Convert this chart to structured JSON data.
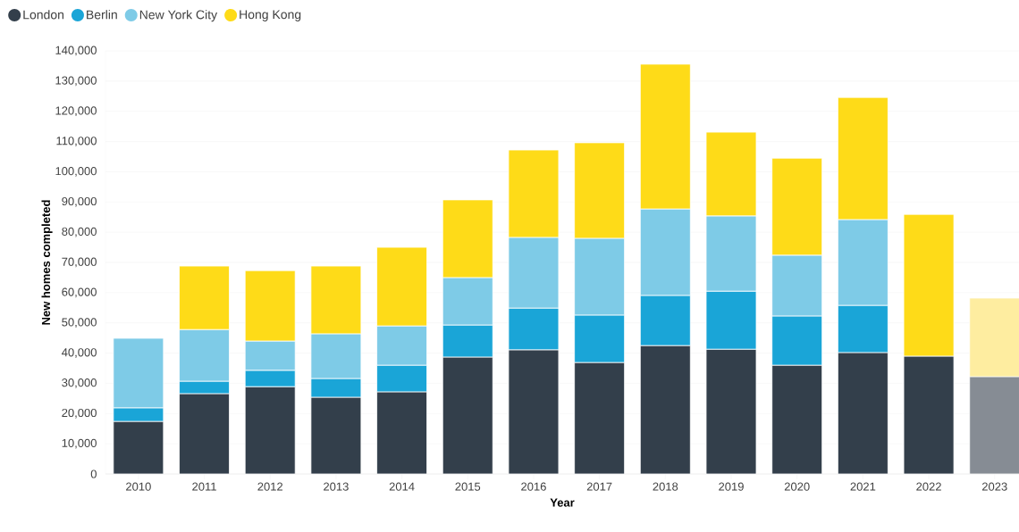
{
  "chart_data": {
    "type": "bar",
    "stacked": true,
    "xlabel": "Year",
    "ylabel": "New homes completed",
    "categories": [
      "2010",
      "2011",
      "2012",
      "2013",
      "2014",
      "2015",
      "2016",
      "2017",
      "2018",
      "2019",
      "2020",
      "2021",
      "2022",
      "2023"
    ],
    "series": [
      {
        "name": "London",
        "color": "#333f4b",
        "colors": [
          "#333f4b",
          "#333f4b",
          "#333f4b",
          "#333f4b",
          "#333f4b",
          "#333f4b",
          "#333f4b",
          "#333f4b",
          "#333f4b",
          "#333f4b",
          "#333f4b",
          "#333f4b",
          "#333f4b",
          "#868c94"
        ],
        "values": [
          17400,
          26600,
          28900,
          25400,
          27200,
          38700,
          41100,
          36900,
          42500,
          41300,
          36000,
          40200,
          39000,
          32200
        ]
      },
      {
        "name": "Berlin",
        "color": "#1aa5d7",
        "values": [
          4500,
          4100,
          5400,
          6200,
          8800,
          10600,
          13800,
          15700,
          16600,
          19200,
          16300,
          15600,
          null,
          null
        ]
      },
      {
        "name": "New York City",
        "color": "#7ecbe7",
        "values": [
          23000,
          17100,
          9700,
          14800,
          13000,
          15700,
          23400,
          25400,
          28600,
          24900,
          20100,
          28400,
          null,
          null
        ]
      },
      {
        "name": "Hong Kong",
        "color": "#fedb18",
        "colors": [
          "#fedb18",
          "#fedb18",
          "#fedb18",
          "#fedb18",
          "#fedb18",
          "#fedb18",
          "#fedb18",
          "#fedb18",
          "#fedb18",
          "#fedb18",
          "#fedb18",
          "#fedb18",
          "#fedb18",
          "#feeda0"
        ],
        "values": [
          null,
          21000,
          23300,
          22400,
          26000,
          25700,
          28900,
          31600,
          47900,
          27700,
          32100,
          40400,
          46900,
          26000
        ]
      }
    ],
    "ylim": [
      0,
      140000
    ],
    "yticks": [
      0,
      {
        "value": 10000,
        "label": "10,000"
      },
      {
        "value": 20000,
        "label": "20,000"
      },
      {
        "value": 30000,
        "label": "30,000"
      },
      {
        "value": 40000,
        "label": "40,000"
      },
      {
        "value": 50000,
        "label": "50,000"
      },
      {
        "value": 60000,
        "label": "60,000"
      },
      {
        "value": 70000,
        "label": "70,000"
      },
      {
        "value": 80000,
        "label": "80,000"
      },
      {
        "value": 90000,
        "label": "90,000"
      },
      {
        "value": 100000,
        "label": "100,000"
      },
      {
        "value": 110000,
        "label": "110,000"
      },
      {
        "value": 120000,
        "label": "120,000"
      },
      {
        "value": 130000,
        "label": "130,000"
      },
      {
        "value": 140000,
        "label": "140,000"
      }
    ],
    "grid": "y",
    "legend": "top left"
  }
}
